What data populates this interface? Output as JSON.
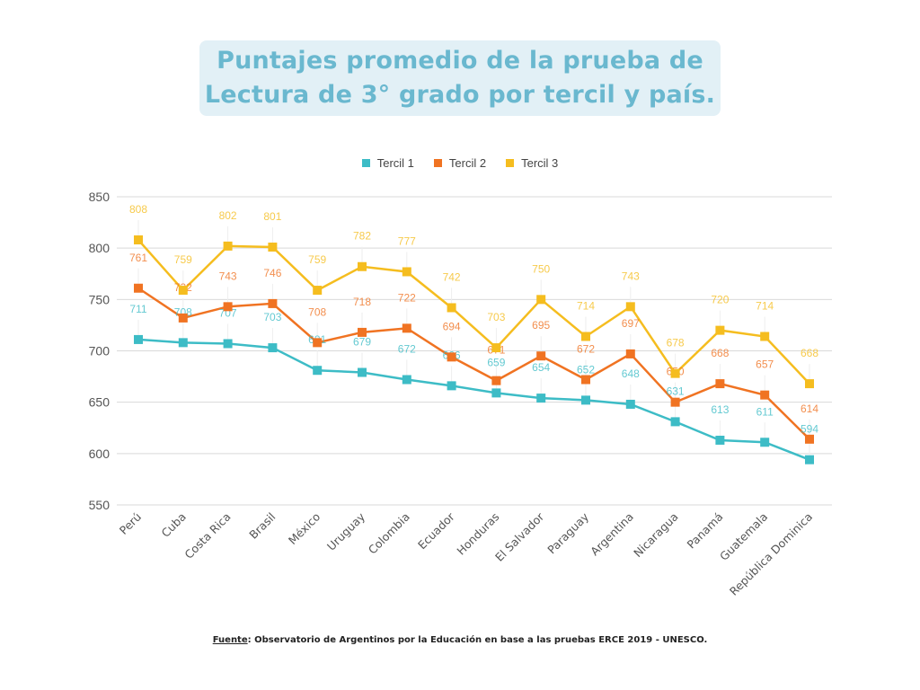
{
  "title_lines": [
    "Puntajes promedio de la prueba de",
    "Lectura de 3° grado por tercil y país."
  ],
  "source": {
    "label": "Fuente",
    "text": ": Observatorio de Argentinos por la Educación en base a las pruebas ERCE 2019 - UNESCO."
  },
  "chart_data": {
    "type": "line",
    "title": "Puntajes promedio de la prueba de Lectura de 3° grado por tercil y país.",
    "xlabel": "",
    "ylabel": "",
    "ylim": [
      550,
      850
    ],
    "yticks": [
      550,
      600,
      650,
      700,
      750,
      800,
      850
    ],
    "grid": true,
    "legend_position": "top-center",
    "categories": [
      "Perú",
      "Cuba",
      "Costa Rica",
      "Brasil",
      "México",
      "Uruguay",
      "Colombia",
      "Ecuador",
      "Honduras",
      "El Salvador",
      "Paraguay",
      "Argentina",
      "Nicaragua",
      "Panamá",
      "Guatemala",
      "República Dominica"
    ],
    "series": [
      {
        "name": "Tercil 1",
        "color": "#3dbcc6",
        "values": [
          711,
          708,
          707,
          703,
          681,
          679,
          672,
          666,
          659,
          654,
          652,
          648,
          631,
          613,
          611,
          594
        ]
      },
      {
        "name": "Tercil 2",
        "color": "#f07322",
        "values": [
          761,
          732,
          743,
          746,
          708,
          718,
          722,
          694,
          671,
          695,
          672,
          697,
          650,
          668,
          657,
          614
        ]
      },
      {
        "name": "Tercil 3",
        "color": "#f5bd1f",
        "values": [
          808,
          759,
          802,
          801,
          759,
          782,
          777,
          742,
          703,
          750,
          714,
          743,
          678,
          720,
          714,
          668
        ]
      }
    ]
  }
}
